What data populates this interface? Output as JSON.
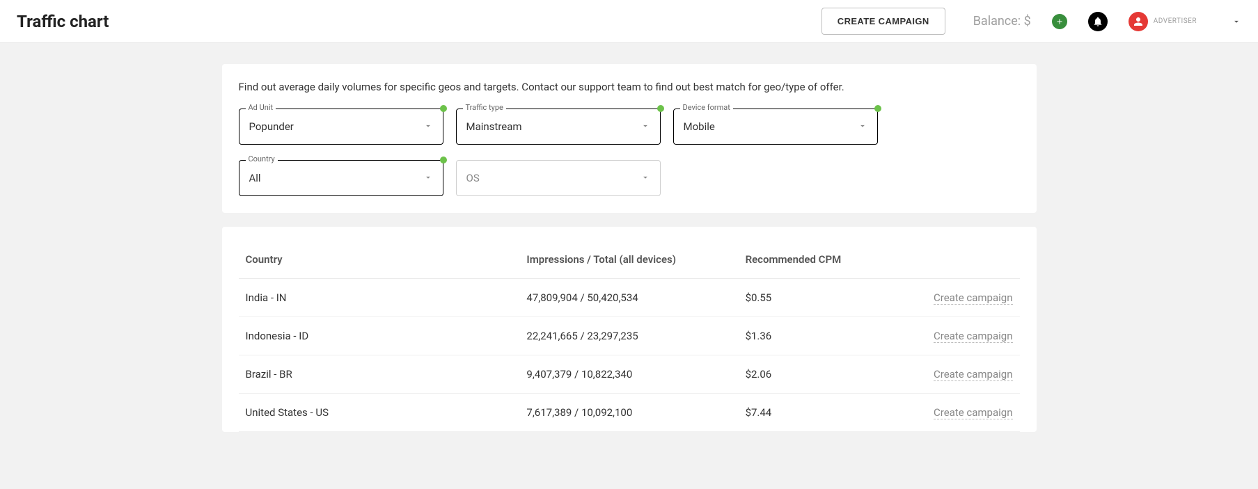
{
  "header": {
    "title": "Traffic chart",
    "create_button": "CREATE CAMPAIGN",
    "balance_label": "Balance:  $",
    "role": "ADVERTISER"
  },
  "filters": {
    "intro": "Find out average daily volumes for specific geos and targets. Contact our support team to find out best match for geo/type of offer.",
    "ad_unit": {
      "label": "Ad Unit",
      "value": "Popunder",
      "has_dot": true
    },
    "traffic_type": {
      "label": "Traffic type",
      "value": "Mainstream",
      "has_dot": true
    },
    "device_format": {
      "label": "Device format",
      "value": "Mobile",
      "has_dot": true
    },
    "country": {
      "label": "Country",
      "value": "All",
      "has_dot": true
    },
    "os": {
      "label": "OS",
      "value": "OS",
      "is_placeholder": true
    }
  },
  "table": {
    "columns": {
      "country": "Country",
      "impressions": "Impressions / Total (all devices)",
      "cpm": "Recommended CPM",
      "action": ""
    },
    "action_label": "Create campaign",
    "rows": [
      {
        "country": "India - IN",
        "impressions": "47,809,904 / 50,420,534",
        "cpm": "$0.55"
      },
      {
        "country": "Indonesia - ID",
        "impressions": "22,241,665 / 23,297,235",
        "cpm": "$1.36"
      },
      {
        "country": "Brazil - BR",
        "impressions": "9,407,379 / 10,822,340",
        "cpm": "$2.06"
      },
      {
        "country": "United States - US",
        "impressions": "7,617,389 / 10,092,100",
        "cpm": "$7.44"
      }
    ]
  },
  "colors": {
    "page_bg": "#f2f2f2",
    "card_bg": "#ffffff",
    "accent_green": "#6cc24a",
    "plus_bg": "#388e3c",
    "avatar_bg": "#e53935",
    "border_dark": "#000000",
    "border_light": "#cfcfcf",
    "text_muted": "#9e9e9e"
  }
}
